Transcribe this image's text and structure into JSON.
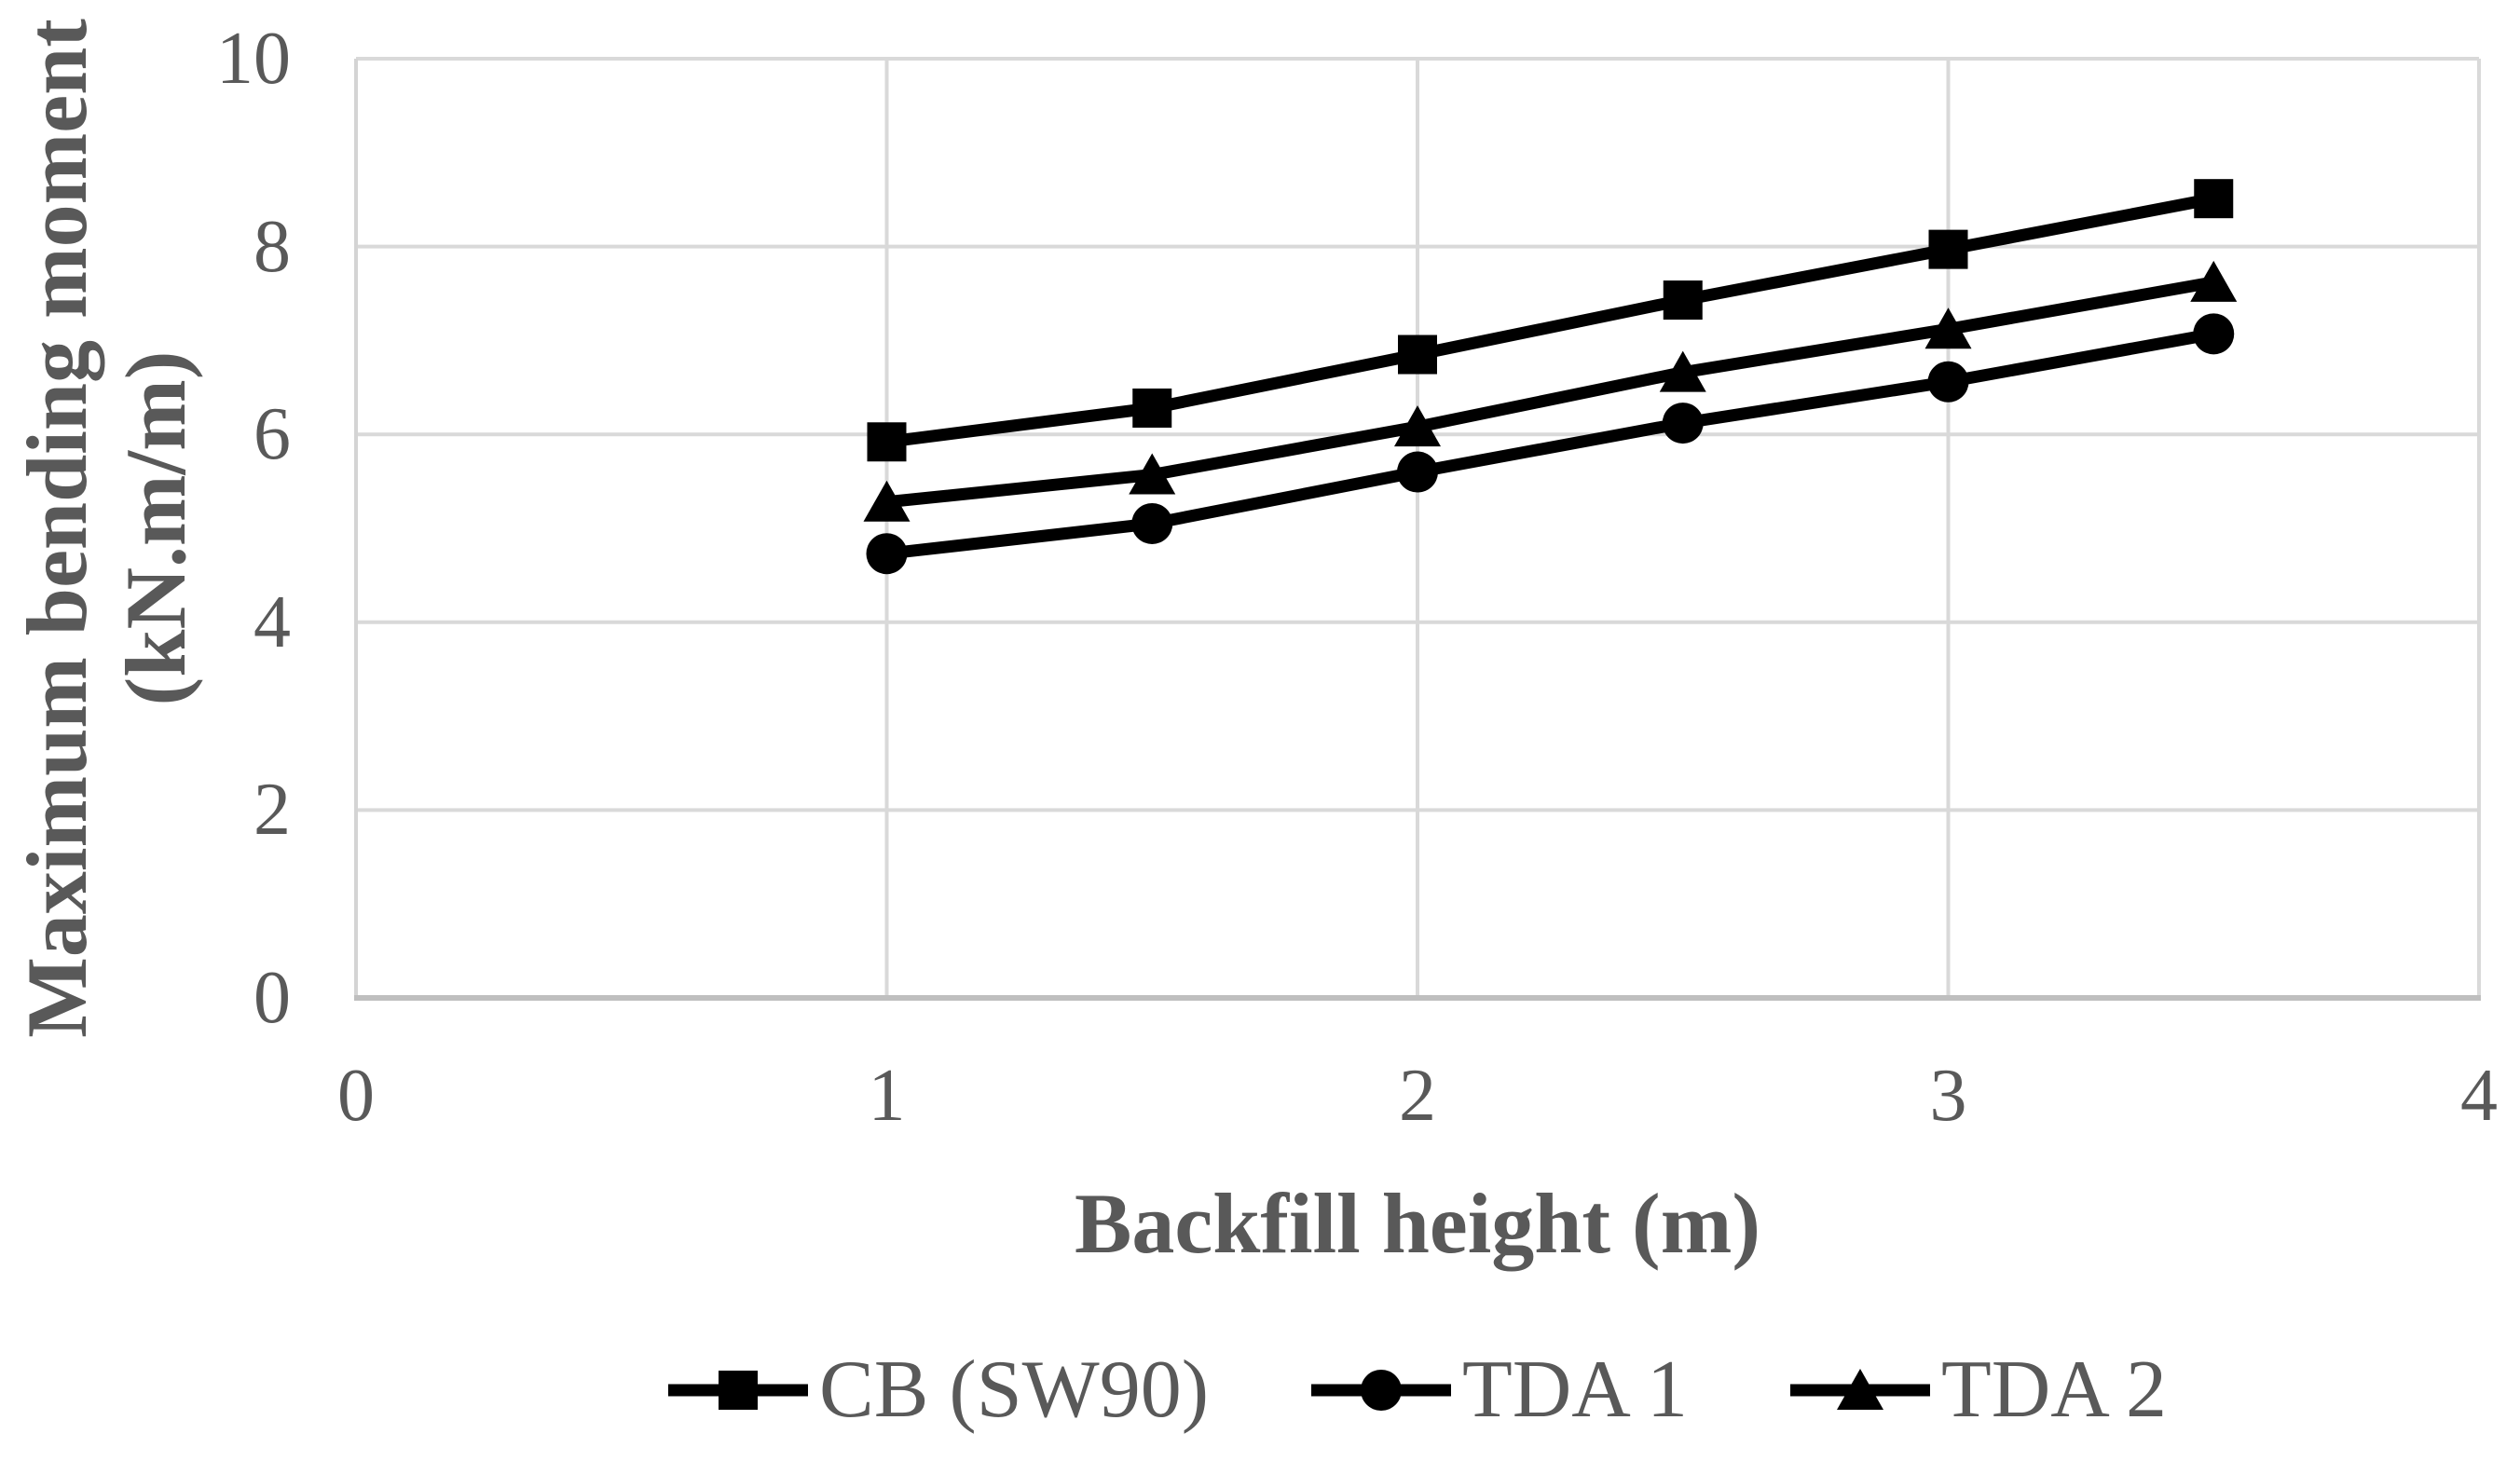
{
  "figure": {
    "background": "#FFFFFF"
  },
  "chart_data": {
    "type": "line",
    "title": "",
    "xlabel": "Backfill height (m)",
    "ylabel": "Maximum bending moment (kN.m/m)",
    "ylabel_lines": [
      "Maximum bending moment",
      "(kN.m/m)"
    ],
    "xlim": [
      0,
      4
    ],
    "ylim": [
      0,
      10
    ],
    "xticks": [
      "0",
      "1",
      "2",
      "3",
      "4"
    ],
    "yticks": [
      "0",
      "2",
      "4",
      "6",
      "8",
      "10"
    ],
    "grid": true,
    "legend_position": "bottom-center",
    "x": [
      1,
      1.5,
      2,
      2.5,
      3,
      3.5
    ],
    "series": [
      {
        "name": "CB (SW90)",
        "marker": "square",
        "values": [
          5.92,
          6.28,
          6.85,
          7.43,
          7.97,
          8.51
        ]
      },
      {
        "name": "TDA 1",
        "marker": "circle",
        "values": [
          4.73,
          5.05,
          5.6,
          6.12,
          6.56,
          7.07
        ]
      },
      {
        "name": "TDA 2",
        "marker": "triangle",
        "values": [
          5.28,
          5.57,
          6.08,
          6.66,
          7.12,
          7.62
        ]
      }
    ],
    "colors": {
      "series": "#000000",
      "gridline": "#D9D9D9",
      "left_axis_line": "#D4D4D4",
      "bottom_axis_line": "#BFBFBF",
      "tick_label": "#595959",
      "axis_title": "#595959",
      "legend_text": "#595959"
    }
  }
}
